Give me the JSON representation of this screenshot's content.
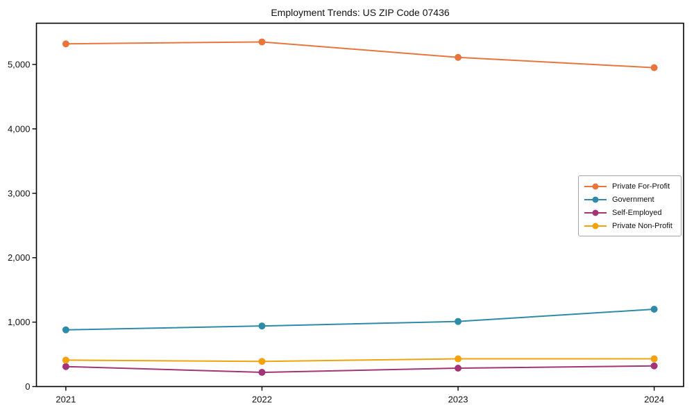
{
  "chart_data": {
    "type": "line",
    "title": "Employment Trends: US ZIP Code 07436",
    "xlabel": "",
    "ylabel": "",
    "x": [
      2021,
      2022,
      2023,
      2024
    ],
    "x_tick_labels": [
      "2021",
      "2022",
      "2023",
      "2024"
    ],
    "y_ticks": [
      0,
      1000,
      2000,
      3000,
      4000,
      5000
    ],
    "y_tick_labels": [
      "0",
      "1,000",
      "2,000",
      "3,000",
      "4,000",
      "5,000"
    ],
    "xlim": [
      2020.85,
      2024.15
    ],
    "ylim": [
      0,
      5640
    ],
    "grid": false,
    "legend_position": "center right",
    "axis_color": "#000000",
    "text_color": "#111111",
    "series": [
      {
        "name": "Private For-Profit",
        "color": "#E8763C",
        "values": [
          5320,
          5350,
          5110,
          4950
        ]
      },
      {
        "name": "Government",
        "color": "#2E8BA8",
        "values": [
          880,
          940,
          1010,
          1200
        ]
      },
      {
        "name": "Self-Employed",
        "color": "#A23477",
        "values": [
          310,
          220,
          285,
          320
        ]
      },
      {
        "name": "Private Non-Profit",
        "color": "#F2A30B",
        "values": [
          410,
          390,
          430,
          430
        ]
      }
    ]
  }
}
